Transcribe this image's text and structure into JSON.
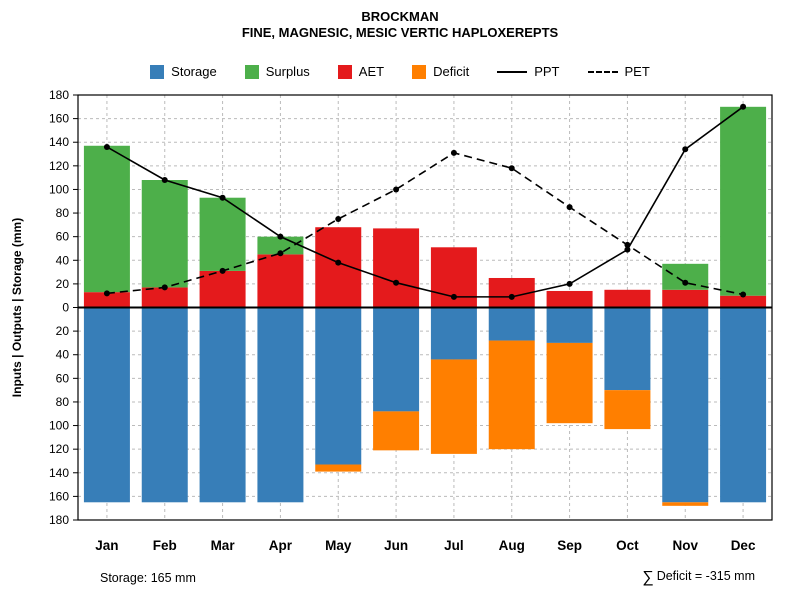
{
  "header": {
    "title": "BROCKMAN",
    "subtitle": "FINE, MAGNESIC, MESIC VERTIC HAPLOXEREPTS"
  },
  "legend": {
    "items": [
      {
        "label": "Storage",
        "swatch": "box",
        "color": "#377EB8"
      },
      {
        "label": "Surplus",
        "swatch": "box",
        "color": "#4DAF4A"
      },
      {
        "label": "AET",
        "swatch": "box",
        "color": "#E41A1C"
      },
      {
        "label": "Deficit",
        "swatch": "box",
        "color": "#FF7F00"
      },
      {
        "label": "PPT",
        "swatch": "line-solid",
        "color": "#000000"
      },
      {
        "label": "PET",
        "swatch": "line-dashed",
        "color": "#000000"
      }
    ]
  },
  "chart_data": {
    "type": "bar",
    "title": "BROCKMAN",
    "subtitle": "FINE, MAGNESIC, MESIC VERTIC HAPLOXEREPTS",
    "categories": [
      "Jan",
      "Feb",
      "Mar",
      "Apr",
      "May",
      "Jun",
      "Jul",
      "Aug",
      "Sep",
      "Oct",
      "Nov",
      "Dec"
    ],
    "series": [
      {
        "name": "AET",
        "type": "bar",
        "direction": "up",
        "color": "#E41A1C",
        "values": [
          13,
          17,
          31,
          45,
          68,
          67,
          51,
          25,
          14,
          15,
          15,
          10
        ]
      },
      {
        "name": "Surplus",
        "type": "bar",
        "direction": "up",
        "color": "#4DAF4A",
        "values": [
          124,
          91,
          62,
          15,
          0,
          0,
          0,
          0,
          0,
          0,
          22,
          160
        ]
      },
      {
        "name": "Storage",
        "type": "bar",
        "direction": "down",
        "color": "#377EB8",
        "values": [
          165,
          165,
          165,
          165,
          133,
          88,
          44,
          28,
          30,
          70,
          165,
          165
        ]
      },
      {
        "name": "Deficit",
        "type": "bar",
        "direction": "down",
        "color": "#FF7F00",
        "values": [
          0,
          0,
          0,
          0,
          6,
          33,
          80,
          92,
          68,
          33,
          3,
          0
        ]
      },
      {
        "name": "PPT",
        "type": "line",
        "style": "solid",
        "color": "#000000",
        "values": [
          136,
          108,
          93,
          60,
          38,
          21,
          9,
          9,
          20,
          49,
          134,
          170
        ]
      },
      {
        "name": "PET",
        "type": "line",
        "style": "dashed",
        "color": "#000000",
        "values": [
          12,
          17,
          31,
          46,
          75,
          100,
          131,
          118,
          85,
          53,
          21,
          11
        ]
      }
    ],
    "xlabel": "",
    "ylabel": "Inputs | Outputs | Storage   (mm)",
    "ylim_up": [
      0,
      180
    ],
    "ylim_down": [
      0,
      180
    ],
    "ytick_step": 20,
    "grid": true,
    "gridline_color": "#bbbbbb",
    "legend_position": "top"
  },
  "footer": {
    "storage_note": "Storage: 165 mm",
    "deficit_sigma": "∑",
    "deficit_note": "Deficit = -315 mm"
  }
}
